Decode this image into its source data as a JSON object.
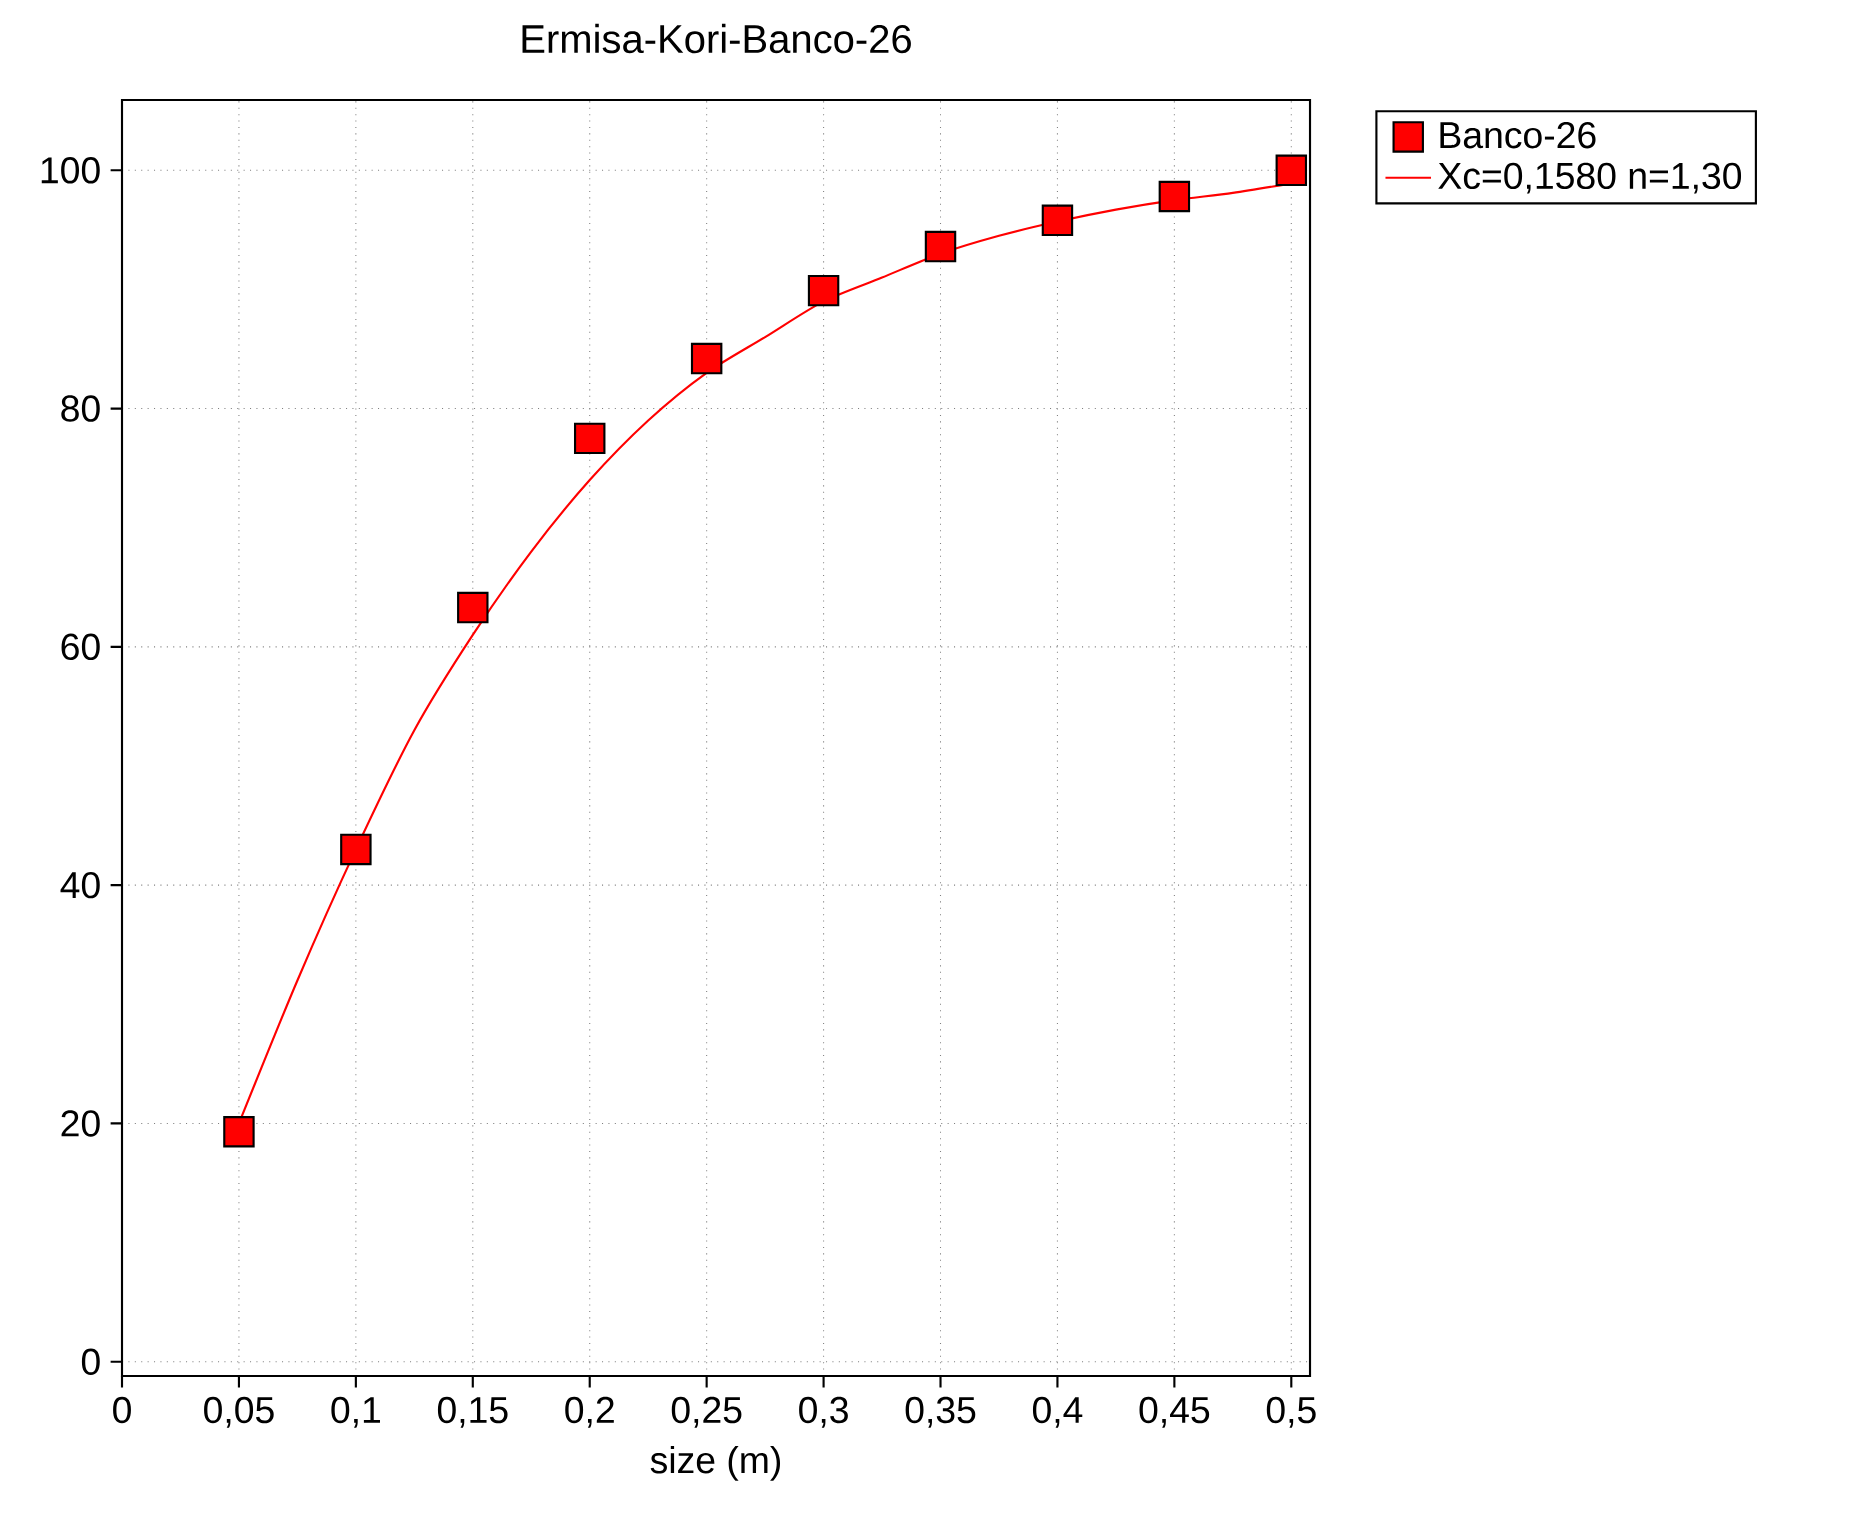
{
  "chart_data": {
    "type": "scatter",
    "title": "Ermisa-Kori-Banco-26",
    "xlabel": "size (m)",
    "series": [
      {
        "name": "Banco-26",
        "color": "#ff0000",
        "marker": "square",
        "x": [
          0.05,
          0.1,
          0.15,
          0.2,
          0.25,
          0.3,
          0.35,
          0.4,
          0.45,
          0.5
        ],
        "values": [
          19.3,
          43,
          63.3,
          77.5,
          84.2,
          89.9,
          93.6,
          95.8,
          97.8,
          100
        ]
      },
      {
        "name": "Xc=0,1580 n=1,30",
        "type": "line",
        "color": "#ff0000",
        "marker": "none",
        "line_style": "solid",
        "x": [
          0.05,
          0.075,
          0.1,
          0.125,
          0.15,
          0.175,
          0.2,
          0.225,
          0.25,
          0.275,
          0.3,
          0.325,
          0.35,
          0.375,
          0.4,
          0.425,
          0.45,
          0.475,
          0.5
        ],
        "values": [
          20,
          32,
          43,
          53,
          61,
          68,
          74,
          79,
          83,
          86,
          89,
          91,
          93,
          94.5,
          95.7,
          96.7,
          97.5,
          98.1,
          98.9
        ]
      }
    ],
    "xlim": [
      0,
      0.508
    ],
    "ylim": [
      -1.2,
      105.9
    ],
    "xticks": [
      0,
      {
        "value": 0.05,
        "label": "0,05"
      },
      {
        "value": 0.1,
        "label": "0,1"
      },
      {
        "value": 0.15,
        "label": "0,15"
      },
      {
        "value": 0.2,
        "label": "0,2"
      },
      {
        "value": 0.25,
        "label": "0,25"
      },
      {
        "value": 0.3,
        "label": "0,3"
      },
      {
        "value": 0.35,
        "label": "0,35"
      },
      {
        "value": 0.4,
        "label": "0,4"
      },
      {
        "value": 0.45,
        "label": "0,45"
      },
      {
        "value": 0.5,
        "label": "0,5"
      }
    ],
    "yticks": [
      0,
      20,
      40,
      60,
      80,
      100
    ],
    "grid": true,
    "legend": "top right"
  }
}
